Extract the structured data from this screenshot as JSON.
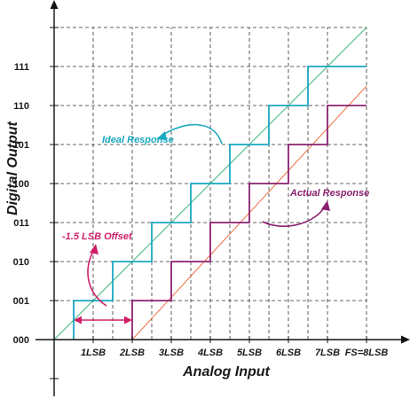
{
  "chart_data": {
    "type": "line",
    "xlabel": "Analog Input",
    "ylabel": "Digital Output",
    "x_ticks": [
      "1LSB",
      "2LSB",
      "3LSB",
      "4LSB",
      "5LSB",
      "6LSB",
      "7LSB",
      "FS=8LSB"
    ],
    "y_ticks": [
      "000",
      "001",
      "010",
      "011",
      "100",
      "101",
      "110",
      "111"
    ],
    "xlim": [
      -0.5,
      9.0
    ],
    "ylim": [
      -1.5,
      8.5
    ],
    "ideal_line": {
      "x": [
        0,
        8
      ],
      "y": [
        0,
        8
      ],
      "color": "#3cb878"
    },
    "actual_line": {
      "x": [
        2,
        8
      ],
      "y": [
        0,
        6.5
      ],
      "color": "#f07040"
    },
    "series": [
      {
        "name": "Ideal Response",
        "color": "#1aa8c0",
        "x": [
          0.5,
          0.5,
          1.5,
          1.5,
          2.5,
          2.5,
          3.5,
          3.5,
          4.5,
          4.5,
          5.5,
          5.5,
          6.5,
          6.5,
          8.0
        ],
        "y": [
          0,
          1,
          1,
          2,
          2,
          3,
          3,
          4,
          4,
          5,
          5,
          6,
          6,
          7,
          7
        ]
      },
      {
        "name": "Actual Response",
        "color": "#8a2070",
        "x": [
          2.0,
          2.0,
          3.0,
          3.0,
          4.0,
          4.0,
          5.0,
          5.0,
          6.0,
          6.0,
          7.0,
          7.0,
          8.0
        ],
        "y": [
          0,
          1,
          1,
          2,
          2,
          3,
          3,
          4,
          4,
          5,
          5,
          6,
          6
        ]
      }
    ],
    "annotations": [
      {
        "text": "Ideal Response",
        "color": "#1aa8c0"
      },
      {
        "text": "Actual Response",
        "color": "#8a2070"
      },
      {
        "text": "-1.5 LSB Offset",
        "color": "#d0206a"
      }
    ],
    "grid": "dashed"
  }
}
